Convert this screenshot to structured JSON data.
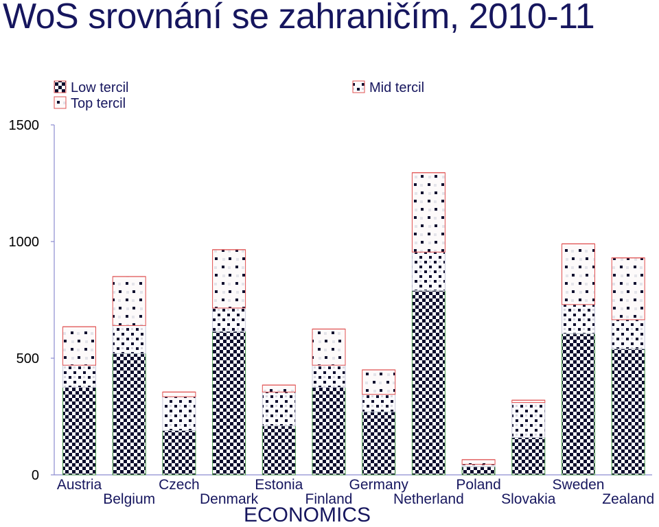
{
  "title": "WoS srovnání se zahraničím, 2010-11",
  "subject_label": "ECONOMICS",
  "colors": {
    "title": "#16165e",
    "label": "#16165e",
    "axis": "#8c8cd0",
    "bottom_edge": "#4a9a4a",
    "mid_edge": "#c8c8d8",
    "top_edge": "#e05050",
    "pattern_dark": "#0d0d2e"
  },
  "chart_data": {
    "type": "bar",
    "stacked": true,
    "categories": [
      "Austria",
      "Belgium",
      "Czech",
      "Denmark",
      "Estonia",
      "Finland",
      "Germany",
      "Netherland",
      "Poland",
      "Slovakia",
      "Sweden",
      "Zealand"
    ],
    "series": [
      {
        "name": "Low tercil",
        "values": [
          375,
          520,
          190,
          615,
          210,
          375,
          270,
          790,
          35,
          160,
          605,
          540
        ]
      },
      {
        "name": "Mid tercil",
        "values": [
          95,
          120,
          145,
          100,
          145,
          95,
          75,
          165,
          10,
          150,
          125,
          125
        ]
      },
      {
        "name": "Top tercil",
        "values": [
          165,
          210,
          20,
          250,
          30,
          155,
          105,
          340,
          20,
          10,
          260,
          265
        ]
      }
    ],
    "ylim": [
      0,
      1500
    ],
    "yticks": [
      0,
      500,
      1000,
      1500
    ],
    "grid": false,
    "legend_position": "top",
    "xlabel": "",
    "ylabel": ""
  }
}
